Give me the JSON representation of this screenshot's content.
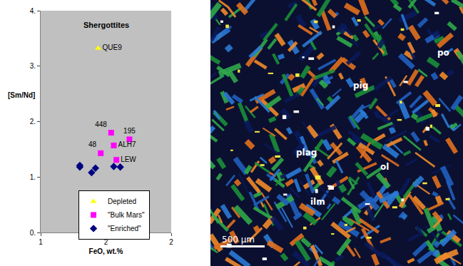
{
  "chart_data": {
    "type": "scatter",
    "title": "Shergottites",
    "x_label": "FeO, wt.%",
    "y_label": "[Sm/Nd]",
    "xlim": [
      1,
      2
    ],
    "xticks": [
      {
        "value": 1,
        "label": "1"
      },
      {
        "value": 1.5,
        "label": "2"
      },
      {
        "value": 2,
        "label": "2"
      }
    ],
    "ylim": [
      0,
      4
    ],
    "yticks": [
      {
        "value": 0,
        "label": "0."
      },
      {
        "value": 1,
        "label": "1."
      },
      {
        "value": 2,
        "label": "2."
      },
      {
        "value": 3,
        "label": "3."
      },
      {
        "value": 4,
        "label": "4."
      }
    ],
    "grid": false,
    "legend": "bottom",
    "series": [
      {
        "name": "Depleted",
        "color": "#ffff00",
        "marker": "triangle-up",
        "x": [
          1.44
        ],
        "values": [
          3.32
        ],
        "point_labels": [
          "QUE9"
        ]
      },
      {
        "name": "\"Bulk Mars\"",
        "color": "#ff00ff",
        "marker": "square",
        "x": [
          1.54,
          1.68,
          1.56,
          1.46,
          1.58
        ],
        "values": [
          1.8,
          1.68,
          1.57,
          1.43,
          1.31
        ],
        "point_labels": [
          "448",
          "195",
          "ALH7",
          "48",
          "LEW"
        ]
      },
      {
        "name": "\"Enriched\"",
        "color": "#000080",
        "marker": "diamond",
        "x": [
          1.3,
          1.3,
          1.39,
          1.42,
          1.56,
          1.61
        ],
        "values": [
          1.21,
          1.18,
          1.08,
          1.16,
          1.19,
          1.18
        ]
      }
    ]
  },
  "image": {
    "mineral_labels": [
      "po",
      "pig",
      "plag",
      "ol",
      "ilm"
    ],
    "scale_bar": "500 μm"
  }
}
